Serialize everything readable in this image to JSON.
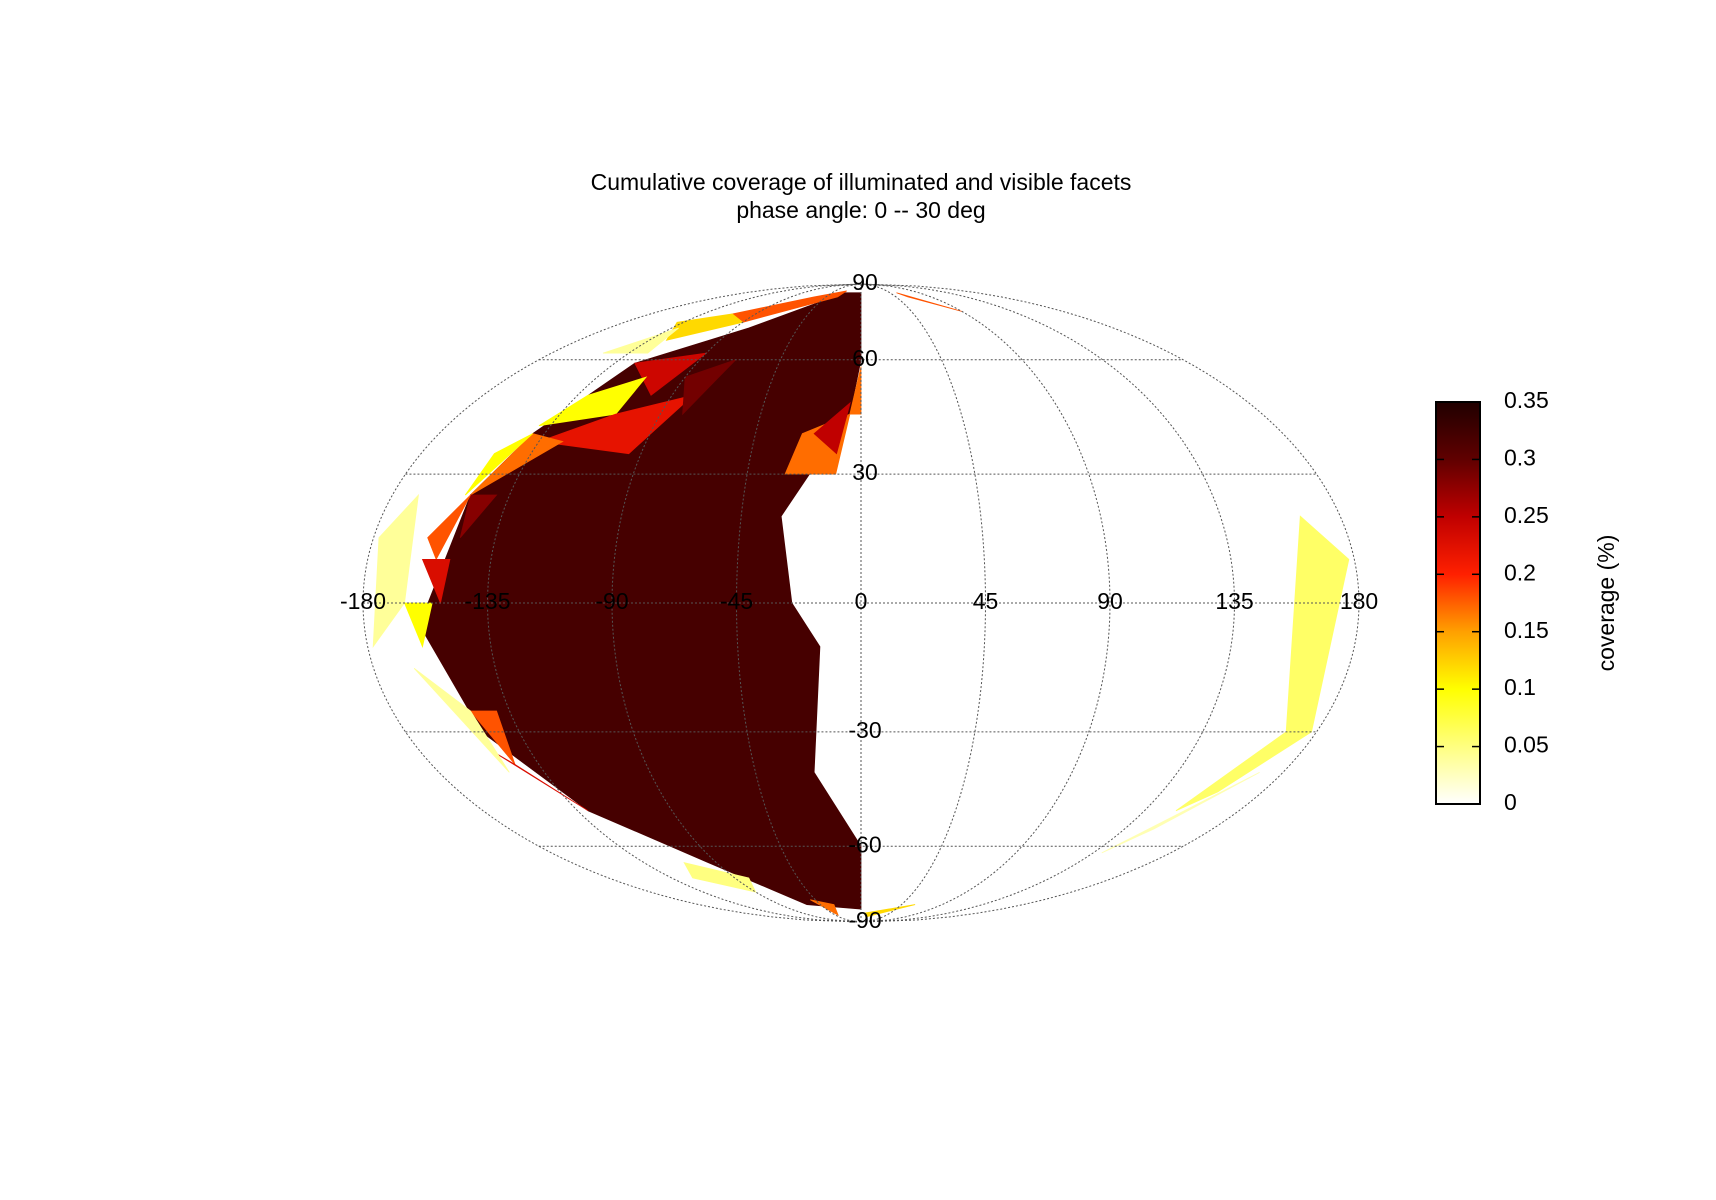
{
  "chart_data": {
    "type": "map",
    "projection": "mollweide",
    "title": "Cumulative coverage of illuminated and visible facets",
    "subtitle": "phase angle:   0 --  30 deg",
    "xticks": [
      -180,
      -135,
      -90,
      -45,
      0,
      45,
      90,
      135,
      180
    ],
    "yticks": [
      -90,
      -60,
      -30,
      0,
      30,
      60,
      90
    ],
    "grid": true,
    "colorbar": {
      "label": "coverage (%)",
      "clim": [
        0,
        0.35
      ],
      "ticks": [
        0,
        0.05,
        0.1,
        0.15,
        0.2,
        0.25,
        0.3,
        0.35
      ],
      "colormap": [
        "#ffffff",
        "#ffff80",
        "#ffff00",
        "#ffa000",
        "#ff2000",
        "#c00000",
        "#600000",
        "#200000"
      ]
    },
    "facets": [
      {
        "value": 0.32,
        "vertices": [
          [
            0,
            84
          ],
          [
            -25,
            84
          ],
          [
            -80,
            70
          ],
          [
            -124,
            59
          ],
          [
            -140,
            40
          ],
          [
            -150,
            25
          ],
          [
            -160,
            -5
          ],
          [
            -150,
            -30
          ],
          [
            -130,
            -50
          ],
          [
            -95,
            -65
          ],
          [
            -60,
            -80
          ],
          [
            0,
            -82
          ],
          [
            0,
            -60
          ],
          [
            -20,
            -40
          ],
          [
            -15,
            -10
          ],
          [
            -25,
            0
          ],
          [
            -30,
            20
          ],
          [
            -5,
            45
          ],
          [
            0,
            60
          ]
        ]
      },
      {
        "value": 0.18,
        "vertices": [
          [
            -110,
            75
          ],
          [
            -60,
            82
          ],
          [
            -25,
            85
          ],
          [
            -30,
            82
          ],
          [
            -90,
            72
          ]
        ]
      },
      {
        "value": 0.12,
        "vertices": [
          [
            -140,
            72
          ],
          [
            -110,
            75
          ],
          [
            -90,
            72
          ],
          [
            -124,
            66
          ]
        ]
      },
      {
        "value": 0.04,
        "vertices": [
          [
            -150,
            62
          ],
          [
            -130,
            70
          ],
          [
            -124,
            62
          ]
        ]
      },
      {
        "value": 0.24,
        "vertices": [
          [
            -124,
            59
          ],
          [
            -90,
            62
          ],
          [
            -100,
            50
          ]
        ]
      },
      {
        "value": 0.1,
        "vertices": [
          [
            -130,
            50
          ],
          [
            -110,
            55
          ],
          [
            -110,
            45
          ],
          [
            -140,
            42
          ]
        ]
      },
      {
        "value": 0.22,
        "vertices": [
          [
            -110,
            45
          ],
          [
            -80,
            50
          ],
          [
            -95,
            35
          ],
          [
            -135,
            38
          ]
        ]
      },
      {
        "value": 0.29,
        "vertices": [
          [
            -90,
            55
          ],
          [
            -70,
            60
          ],
          [
            -80,
            45
          ]
        ]
      },
      {
        "value": 0.17,
        "vertices": [
          [
            -140,
            40
          ],
          [
            -125,
            38
          ],
          [
            -150,
            25
          ]
        ]
      },
      {
        "value": 0.1,
        "vertices": [
          [
            -150,
            35
          ],
          [
            -140,
            40
          ],
          [
            -152,
            25
          ]
        ]
      },
      {
        "value": 0.28,
        "vertices": [
          [
            -150,
            25
          ],
          [
            -140,
            25
          ],
          [
            -148,
            15
          ]
        ]
      },
      {
        "value": 0.18,
        "vertices": [
          [
            -160,
            15
          ],
          [
            -150,
            25
          ],
          [
            -155,
            10
          ]
        ]
      },
      {
        "value": 0.23,
        "vertices": [
          [
            -160,
            10
          ],
          [
            -150,
            10
          ],
          [
            -152,
            0
          ]
        ]
      },
      {
        "value": 0.1,
        "vertices": [
          [
            -165,
            0
          ],
          [
            -155,
            0
          ],
          [
            -160,
            -10
          ]
        ]
      },
      {
        "value": 0.18,
        "vertices": [
          [
            -150,
            -25
          ],
          [
            -140,
            -25
          ],
          [
            -145,
            -38
          ]
        ]
      },
      {
        "value": 0.23,
        "vertices": [
          [
            -145,
            -38
          ],
          [
            -130,
            -50
          ],
          [
            -150,
            -35
          ]
        ]
      },
      {
        "value": 0.04,
        "vertices": [
          [
            -150,
            -25
          ],
          [
            -165,
            -15
          ],
          [
            -150,
            -40
          ]
        ]
      },
      {
        "value": 0.17,
        "vertices": [
          [
            -25,
            40
          ],
          [
            -5,
            45
          ],
          [
            -10,
            30
          ],
          [
            -30,
            30
          ]
        ]
      },
      {
        "value": 0.25,
        "vertices": [
          [
            -20,
            40
          ],
          [
            -5,
            48
          ],
          [
            -10,
            35
          ]
        ]
      },
      {
        "value": 0.17,
        "vertices": [
          [
            0,
            58
          ],
          [
            -5,
            45
          ],
          [
            0,
            45
          ]
        ]
      },
      {
        "value": 0.17,
        "vertices": [
          [
            -50,
            -78
          ],
          [
            -30,
            -80
          ],
          [
            -40,
            -85
          ]
        ]
      },
      {
        "value": 0.06,
        "vertices": [
          [
            165,
            20
          ],
          [
            178,
            10
          ],
          [
            178,
            -30
          ],
          [
            160,
            -45
          ],
          [
            150,
            -50
          ],
          [
            168,
            -30
          ]
        ]
      },
      {
        "value": 0.03,
        "vertices": [
          [
            150,
            -55
          ],
          [
            170,
            -40
          ],
          [
            140,
            -62
          ]
        ]
      },
      {
        "value": 0.04,
        "vertices": [
          [
            -178,
            15
          ],
          [
            -170,
            25
          ],
          [
            -165,
            0
          ],
          [
            -178,
            -10
          ]
        ]
      },
      {
        "value": 0.12,
        "vertices": [
          [
            5,
            -84
          ],
          [
            60,
            -80
          ],
          [
            10,
            -86
          ]
        ]
      },
      {
        "value": 0.18,
        "vertices": [
          [
            55,
            84
          ],
          [
            90,
            76
          ],
          [
            60,
            82
          ]
        ]
      },
      {
        "value": 0.05,
        "vertices": [
          [
            -110,
            -65
          ],
          [
            -80,
            -70
          ],
          [
            -90,
            -75
          ],
          [
            -120,
            -70
          ]
        ]
      }
    ]
  }
}
